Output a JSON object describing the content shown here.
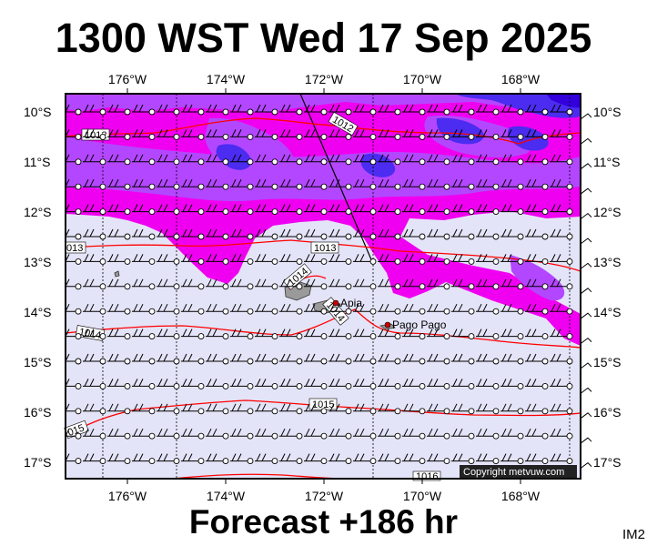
{
  "title": "1300 WST Wed 17 Sep 2025",
  "forecast_label": "Forecast +186 hr",
  "corner_label": "IM2",
  "copyright": "Copyright metvuw.com",
  "colors": {
    "background_land_sea": "#e4e4f8",
    "rain_light": "#b347ff",
    "rain_magenta": "#f000f0",
    "rain_heavy": "#4b2cf0",
    "isobar": "#ff0000",
    "land": "#9a9a9a",
    "frame": "#000000"
  },
  "axes": {
    "lon_labels": [
      "176°W",
      "174°W",
      "172°W",
      "170°W",
      "168°W"
    ],
    "lat_labels": [
      "10°S",
      "11°S",
      "12°S",
      "13°S",
      "14°S",
      "15°S",
      "16°S",
      "17°S"
    ]
  },
  "isobar_labels": [
    "1012",
    "1012",
    "1013",
    "013",
    "1014",
    "1014",
    "1014",
    "1015",
    "015",
    "1016"
  ],
  "places": [
    {
      "name": "Apia"
    },
    {
      "name": "Pago Pago"
    }
  ]
}
